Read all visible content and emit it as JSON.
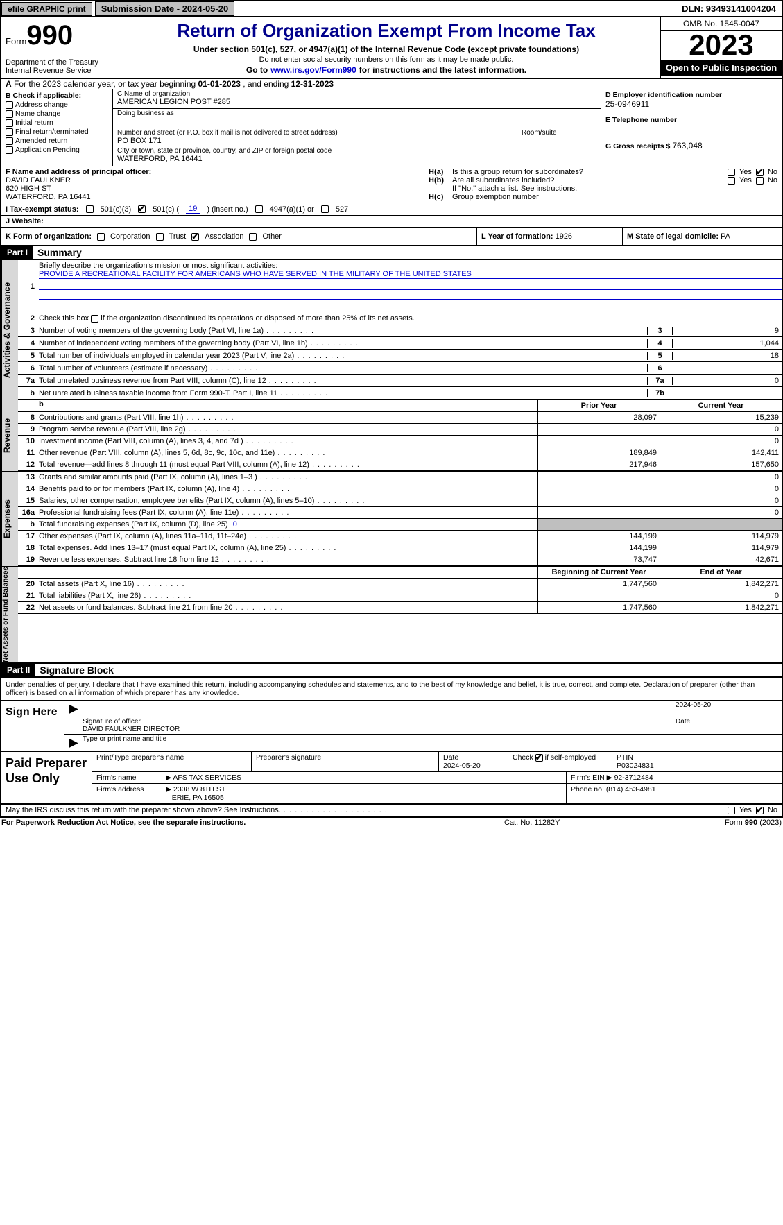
{
  "topbar": {
    "efile": "efile GRAPHIC print",
    "submission": "Submission Date - 2024-05-20",
    "dln": "DLN: 93493141004204"
  },
  "header": {
    "form_label": "Form",
    "form_number": "990",
    "dept": "Department of the Treasury\nInternal Revenue Service",
    "title": "Return of Organization Exempt From Income Tax",
    "sub1": "Under section 501(c), 527, or 4947(a)(1) of the Internal Revenue Code (except private foundations)",
    "sub2": "Do not enter social security numbers on this form as it may be made public.",
    "sub3_pre": "Go to ",
    "sub3_link": "www.irs.gov/Form990",
    "sub3_post": " for instructions and the latest information.",
    "omb": "OMB No. 1545-0047",
    "year": "2023",
    "open_inspection": "Open to Public Inspection"
  },
  "line_a": {
    "pre": "A",
    "text": "For the 2023 calendar year, or tax year beginning",
    "begin": "01-01-2023",
    "mid": ", and ending",
    "end": "12-31-2023"
  },
  "box_b": {
    "title": "B Check if applicable:",
    "opts": [
      "Address change",
      "Name change",
      "Initial return",
      "Final return/terminated",
      "Amended return",
      "Application Pending"
    ]
  },
  "box_c": {
    "name_lbl": "C Name of organization",
    "name": "AMERICAN LEGION POST #285",
    "dba_lbl": "Doing business as",
    "dba": "",
    "street_lbl": "Number and street (or P.O. box if mail is not delivered to street address)",
    "street": "PO BOX 171",
    "suite_lbl": "Room/suite",
    "city_lbl": "City or town, state or province, country, and ZIP or foreign postal code",
    "city": "WATERFORD, PA  16441"
  },
  "box_d": {
    "ein_lbl": "D Employer identification number",
    "ein": "25-0946911",
    "tel_lbl": "E Telephone number",
    "tel": "",
    "gross_lbl": "G Gross receipts $",
    "gross": "763,048"
  },
  "box_f": {
    "lbl": "F  Name and address of principal officer:",
    "name": "DAVID FAULKNER",
    "addr1": "620 HIGH ST",
    "addr2": "WATERFORD, PA  16441"
  },
  "box_h": {
    "a_lbl": "Is this a group return for subordinates?",
    "a_yes": "Yes",
    "a_no": "No",
    "a_val": "No",
    "b_lbl": "Are all subordinates included?",
    "b_yes": "Yes",
    "b_no": "No",
    "b_note": "If \"No,\" attach a list. See instructions.",
    "c_lbl": "Group exemption number"
  },
  "box_i": {
    "lbl": "I  Tax-exempt status:",
    "o1": "501(c)(3)",
    "o2_a": "501(c) (",
    "o2_num": "19",
    "o2_b": ") (insert no.)",
    "o3": "4947(a)(1) or",
    "o4": "527"
  },
  "box_j": {
    "lbl": "J  Website:",
    "val": ""
  },
  "box_k": {
    "lbl": "K Form of organization:",
    "o1": "Corporation",
    "o2": "Trust",
    "o3": "Association",
    "o4": "Other"
  },
  "box_l": {
    "lbl": "L Year of formation:",
    "val": "1926"
  },
  "box_m": {
    "lbl": "M State of legal domicile:",
    "val": "PA"
  },
  "part1": {
    "tag": "Part I",
    "title": "Summary"
  },
  "summary": {
    "sec1_vtab": "Activities & Governance",
    "line1_lbl": "Briefly describe the organization's mission or most significant activities:",
    "line1_val": "PROVIDE A RECREATIONAL FACILITY FOR AMERICANS WHO HAVE SERVED IN THE MILITARY OF THE UNITED STATES",
    "line2": "Check this box       if the organization discontinued its operations or disposed of more than 25% of its net assets.",
    "rows_top": [
      {
        "n": "3",
        "t": "Number of voting members of the governing body (Part VI, line 1a)",
        "box": "3",
        "v": "9"
      },
      {
        "n": "4",
        "t": "Number of independent voting members of the governing body (Part VI, line 1b)",
        "box": "4",
        "v": "1,044"
      },
      {
        "n": "5",
        "t": "Total number of individuals employed in calendar year 2023 (Part V, line 2a)",
        "box": "5",
        "v": "18"
      },
      {
        "n": "6",
        "t": "Total number of volunteers (estimate if necessary)",
        "box": "6",
        "v": ""
      },
      {
        "n": "7a",
        "t": "Total unrelated business revenue from Part VIII, column (C), line 12",
        "box": "7a",
        "v": "0"
      },
      {
        "n": "b",
        "t": "Net unrelated business taxable income from Form 990-T, Part I, line 11",
        "box": "7b",
        "v": ""
      }
    ],
    "sec2_vtab": "Revenue",
    "col_head1": "Prior Year",
    "col_head2": "Current Year",
    "rev_rows": [
      {
        "n": "8",
        "t": "Contributions and grants (Part VIII, line 1h)",
        "c1": "28,097",
        "c2": "15,239"
      },
      {
        "n": "9",
        "t": "Program service revenue (Part VIII, line 2g)",
        "c1": "",
        "c2": "0"
      },
      {
        "n": "10",
        "t": "Investment income (Part VIII, column (A), lines 3, 4, and 7d )",
        "c1": "",
        "c2": "0"
      },
      {
        "n": "11",
        "t": "Other revenue (Part VIII, column (A), lines 5, 6d, 8c, 9c, 10c, and 11e)",
        "c1": "189,849",
        "c2": "142,411"
      },
      {
        "n": "12",
        "t": "Total revenue—add lines 8 through 11 (must equal Part VIII, column (A), line 12)",
        "c1": "217,946",
        "c2": "157,650"
      }
    ],
    "sec3_vtab": "Expenses",
    "exp_rows": [
      {
        "n": "13",
        "t": "Grants and similar amounts paid (Part IX, column (A), lines 1–3 )",
        "c1": "",
        "c2": "0"
      },
      {
        "n": "14",
        "t": "Benefits paid to or for members (Part IX, column (A), line 4)",
        "c1": "",
        "c2": "0"
      },
      {
        "n": "15",
        "t": "Salaries, other compensation, employee benefits (Part IX, column (A), lines 5–10)",
        "c1": "",
        "c2": "0"
      },
      {
        "n": "16a",
        "t": "Professional fundraising fees (Part IX, column (A), line 11e)",
        "c1": "",
        "c2": "0"
      }
    ],
    "line16b_pre": "b",
    "line16b_t": "Total fundraising expenses (Part IX, column (D), line 25)",
    "line16b_v": "0",
    "exp_rows2": [
      {
        "n": "17",
        "t": "Other expenses (Part IX, column (A), lines 11a–11d, 11f–24e)",
        "c1": "144,199",
        "c2": "114,979"
      },
      {
        "n": "18",
        "t": "Total expenses. Add lines 13–17 (must equal Part IX, column (A), line 25)",
        "c1": "144,199",
        "c2": "114,979"
      },
      {
        "n": "19",
        "t": "Revenue less expenses. Subtract line 18 from line 12",
        "c1": "73,747",
        "c2": "42,671"
      }
    ],
    "sec4_vtab": "Net Assets or Fund Balances",
    "col_head3": "Beginning of Current Year",
    "col_head4": "End of Year",
    "na_rows": [
      {
        "n": "20",
        "t": "Total assets (Part X, line 16)",
        "c1": "1,747,560",
        "c2": "1,842,271"
      },
      {
        "n": "21",
        "t": "Total liabilities (Part X, line 26)",
        "c1": "",
        "c2": "0"
      },
      {
        "n": "22",
        "t": "Net assets or fund balances. Subtract line 21 from line 20",
        "c1": "1,747,560",
        "c2": "1,842,271"
      }
    ]
  },
  "part2": {
    "tag": "Part II",
    "title": "Signature Block"
  },
  "sig": {
    "decl": "Under penalties of perjury, I declare that I have examined this return, including accompanying schedules and statements, and to the best of my knowledge and belief, it is true, correct, and complete. Declaration of preparer (other than officer) is based on all information of which preparer has any knowledge.",
    "sign_here": "Sign Here",
    "sig_officer_lbl": "Signature of officer",
    "officer_name": "DAVID FAULKNER  DIRECTOR",
    "name_title_lbl": "Type or print name and title",
    "date_lbl": "Date",
    "date_val": "2024-05-20",
    "paid_lbl": "Paid Preparer Use Only",
    "prep_name_lbl": "Print/Type preparer's name",
    "prep_sig_lbl": "Preparer's signature",
    "prep_date_lbl": "Date",
    "prep_date": "2024-05-20",
    "prep_check_lbl": "Check        if self-employed",
    "ptin_lbl": "PTIN",
    "ptin": "P03024831",
    "firm_name_lbl": "Firm's name",
    "firm_name": "AFS TAX SERVICES",
    "firm_ein_lbl": "Firm's EIN",
    "firm_ein": "92-3712484",
    "firm_addr_lbl": "Firm's address",
    "firm_addr1": "2308 W 8TH ST",
    "firm_addr2": "ERIE, PA  16505",
    "firm_phone_lbl": "Phone no.",
    "firm_phone": "(814) 453-4981",
    "discuss": "May the IRS discuss this return with the preparer shown above? See Instructions.",
    "discuss_yes": "Yes",
    "discuss_no": "No"
  },
  "footer": {
    "l": "For Paperwork Reduction Act Notice, see the separate instructions.",
    "m": "Cat. No. 11282Y",
    "r": "Form 990 (2023)"
  }
}
